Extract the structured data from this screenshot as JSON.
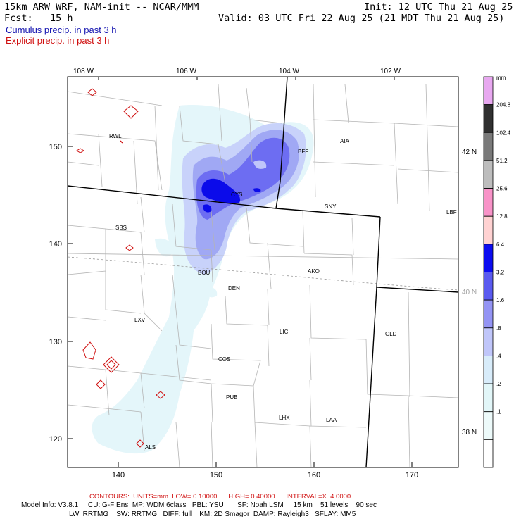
{
  "header": {
    "title": "15km ARW WRF, NAM-init -- NCAR/MMM",
    "init": "Init: 12 UTC Thu 21 Aug 25",
    "fcst": "Fcst:   15 h",
    "valid": "Valid: 03 UTC Fri 22 Aug 25 (21 MDT Thu 21 Aug 25)",
    "cumulus_label": "Cumulus precip. in past 3 h",
    "explicit_label": "Explicit precip. in past 3 h"
  },
  "axes": {
    "lon_labels": [
      "108 W",
      "106 W",
      "104 W",
      "102 W"
    ],
    "lat_labels": [
      "42 N",
      "40 N",
      "38 N"
    ],
    "y_ticks": [
      "150",
      "140",
      "130",
      "120"
    ],
    "x_ticks": [
      "140",
      "150",
      "160",
      "170"
    ]
  },
  "cities": [
    "RWL",
    "BFF",
    "AIA",
    "CYS",
    "SNY",
    "LBF",
    "SBS",
    "AKO",
    "BOU",
    "DEN",
    "LXV",
    "LIC",
    "GLD",
    "COS",
    "PUB",
    "LHX",
    "LAA",
    "ALS"
  ],
  "colorbar": {
    "unit": "mm",
    "levels": [
      "204.8",
      "102.4",
      "51.2",
      "25.6",
      "12.8",
      "6.4",
      "3.2",
      "1.6",
      ".8",
      ".4",
      ".2",
      ".1"
    ],
    "colors": [
      "#e8a8f0",
      "#303030",
      "#7a7a7a",
      "#bdbdbd",
      "#f893c8",
      "#ffd2d2",
      "#0c0cf0",
      "#5a5af0",
      "#9494f4",
      "#c0c6fa",
      "#d8ecfa",
      "#e2f6f8",
      "#edfafa",
      "#ffffff"
    ]
  },
  "footer": {
    "contours": "CONTOURS:  UNITS=mm  LOW= 0.10000      HIGH= 0.40000      INTERVAL=X  4.0000",
    "model_line1": "Model Info: V3.8.1     CU: G-F Ens  MP: WDM 6class   PBL: YSU       SF: Noah LSM     15 km    51 levels    90 sec",
    "model_line2": "LW: RRTMG    SW: RRTMG   DIFF: full    KM: 2D Smagor  DAMP: Rayleigh3   SFLAY: MM5"
  },
  "colors": {
    "cumulus": "#1515b0",
    "explicit": "#d01010"
  }
}
